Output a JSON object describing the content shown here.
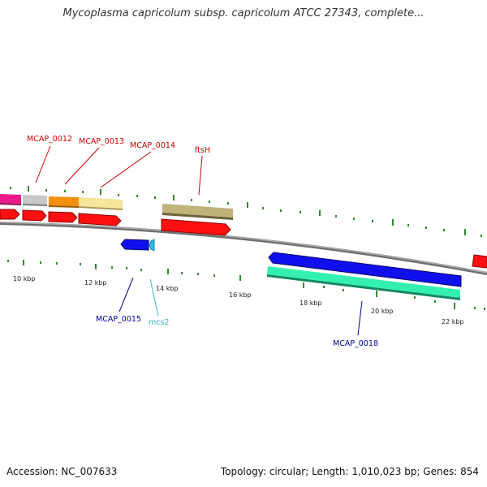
{
  "title": "Mycoplasma capricolum subsp. capricolum ATCC 27343, complete...",
  "footer": {
    "accession": "Accession: NC_007633",
    "summary": "Topology: circular; Length: 1,010,023 bp; Genes: 854"
  },
  "colors": {
    "backbone": "#8a8a8a",
    "tick": "#2e8b2e",
    "label_red": "#cc0000",
    "label_blue": "#00009c",
    "label_cyan": "#33bbdd"
  },
  "tick_labels": [
    "10 kbp",
    "12 kbp",
    "14 kbp",
    "16 kbp",
    "18 kbp",
    "20 kbp",
    "22 kbp"
  ],
  "gene_labels": [
    {
      "text": "MCAP_0012",
      "color": "red"
    },
    {
      "text": "MCAP_0013",
      "color": "red"
    },
    {
      "text": "MCAP_0014",
      "color": "red"
    },
    {
      "text": "ftsH",
      "color": "red"
    },
    {
      "text": "MCAP_0015",
      "color": "blue"
    },
    {
      "text": "mcs2",
      "color": "cyan"
    },
    {
      "text": "MCAP_0018",
      "color": "blue"
    }
  ]
}
